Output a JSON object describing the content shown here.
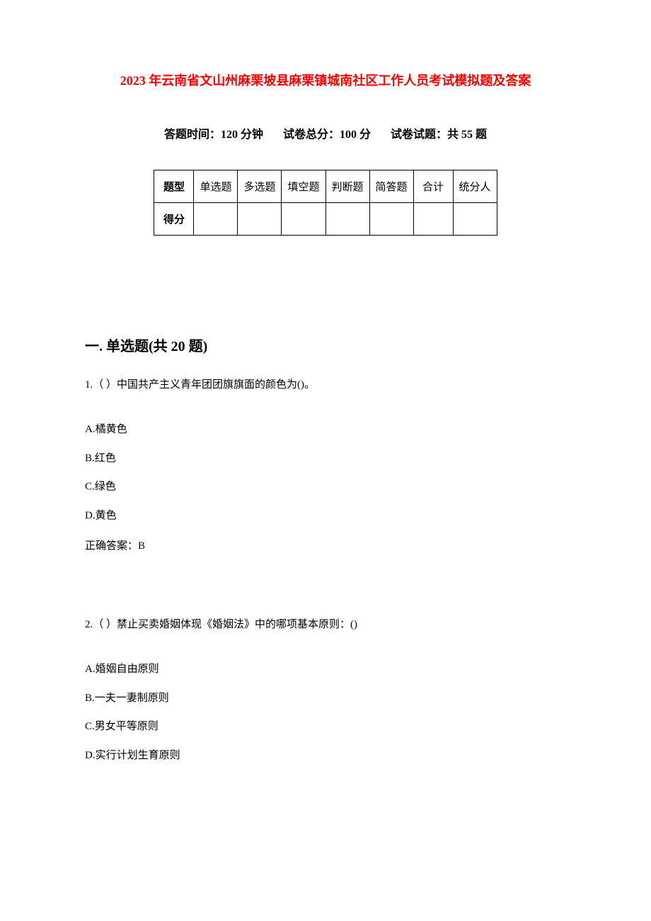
{
  "document": {
    "title": "2023 年云南省文山州麻栗坡县麻栗镇城南社区工作人员考试模拟题及答案",
    "title_color": "#ff0000",
    "title_fontsize": 18,
    "background_color": "#ffffff",
    "text_color": "#000000",
    "body_fontsize": 15
  },
  "exam_info": {
    "time_label": "答题时间：120 分钟",
    "total_score_label": "试卷总分：100 分",
    "question_count_label": "试卷试题：共 55 题",
    "fontsize": 16
  },
  "score_table": {
    "border_color": "#000000",
    "cell_fontsize": 15,
    "row1": {
      "label": "题型",
      "cells": [
        "单选题",
        "多选题",
        "填空题",
        "判断题",
        "简答题",
        "合计",
        "统分人"
      ]
    },
    "row2": {
      "label": "得分",
      "cells": [
        "",
        "",
        "",
        "",
        "",
        "",
        ""
      ]
    }
  },
  "section": {
    "title": "一. 单选题(共 20 题)",
    "fontsize": 20
  },
  "questions": [
    {
      "prompt": "1.（ ）中国共产主义青年团团旗旗面的颜色为()。",
      "options": {
        "A": "A.橘黄色",
        "B": "B.红色",
        "C": "C.绿色",
        "D": "D.黄色"
      },
      "answer": "正确答案：B"
    },
    {
      "prompt": "2.（ ）禁止买卖婚姻体现《婚姻法》中的哪项基本原则：()",
      "options": {
        "A": "A.婚姻自由原则",
        "B": "B.一夫一妻制原则",
        "C": "C.男女平等原则",
        "D": "D.实行计划生育原则"
      }
    }
  ]
}
